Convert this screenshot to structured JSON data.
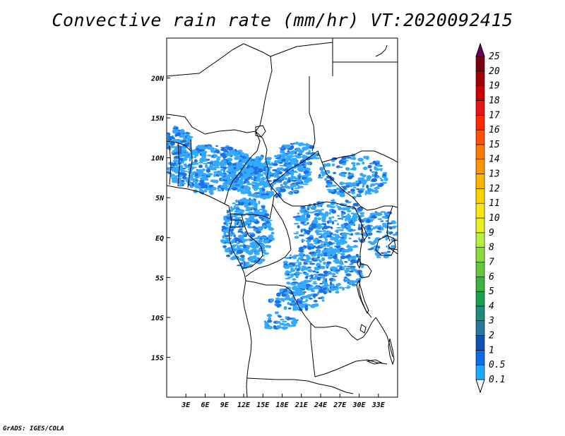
{
  "title": "Convective rain rate (mm/hr) VT:2020092415",
  "credit": "GrADS: IGES/COLA",
  "map": {
    "lon_range": [
      0,
      36
    ],
    "lat_range": [
      -20,
      25
    ],
    "lat_labels": [
      "20N",
      "15N",
      "10N",
      "5N",
      "EQ",
      "5S",
      "10S",
      "15S"
    ],
    "lat_values": [
      20,
      15,
      10,
      5,
      0,
      -5,
      -10,
      -15
    ],
    "lon_labels": [
      "3E",
      "6E",
      "9E",
      "12E",
      "15E",
      "18E",
      "21E",
      "24E",
      "27E",
      "30E",
      "33E"
    ],
    "lon_values": [
      3,
      6,
      9,
      12,
      15,
      18,
      21,
      24,
      27,
      30,
      33
    ],
    "rain_color_primary": "#33aaff",
    "rain_color_heavy": "#1e6ee6"
  },
  "colorbar": {
    "labels": [
      "0.1",
      "0.5",
      "1",
      "2",
      "3",
      "4",
      "5",
      "6",
      "7",
      "8",
      "9",
      "10",
      "11",
      "12",
      "13",
      "14",
      "15",
      "16",
      "17",
      "18",
      "19",
      "20",
      "25"
    ],
    "colors": [
      "#1eaaff",
      "#0a6ee6",
      "#1450b4",
      "#2878a0",
      "#1e8c78",
      "#14a050",
      "#3cb43c",
      "#64c83c",
      "#8cdc3c",
      "#b4f03c",
      "#e6f01e",
      "#ffe614",
      "#ffd200",
      "#ffb400",
      "#ff9600",
      "#ff7800",
      "#ff5000",
      "#ff2800",
      "#e61414",
      "#c80000",
      "#a00000",
      "#780014",
      "#64005a"
    ]
  }
}
